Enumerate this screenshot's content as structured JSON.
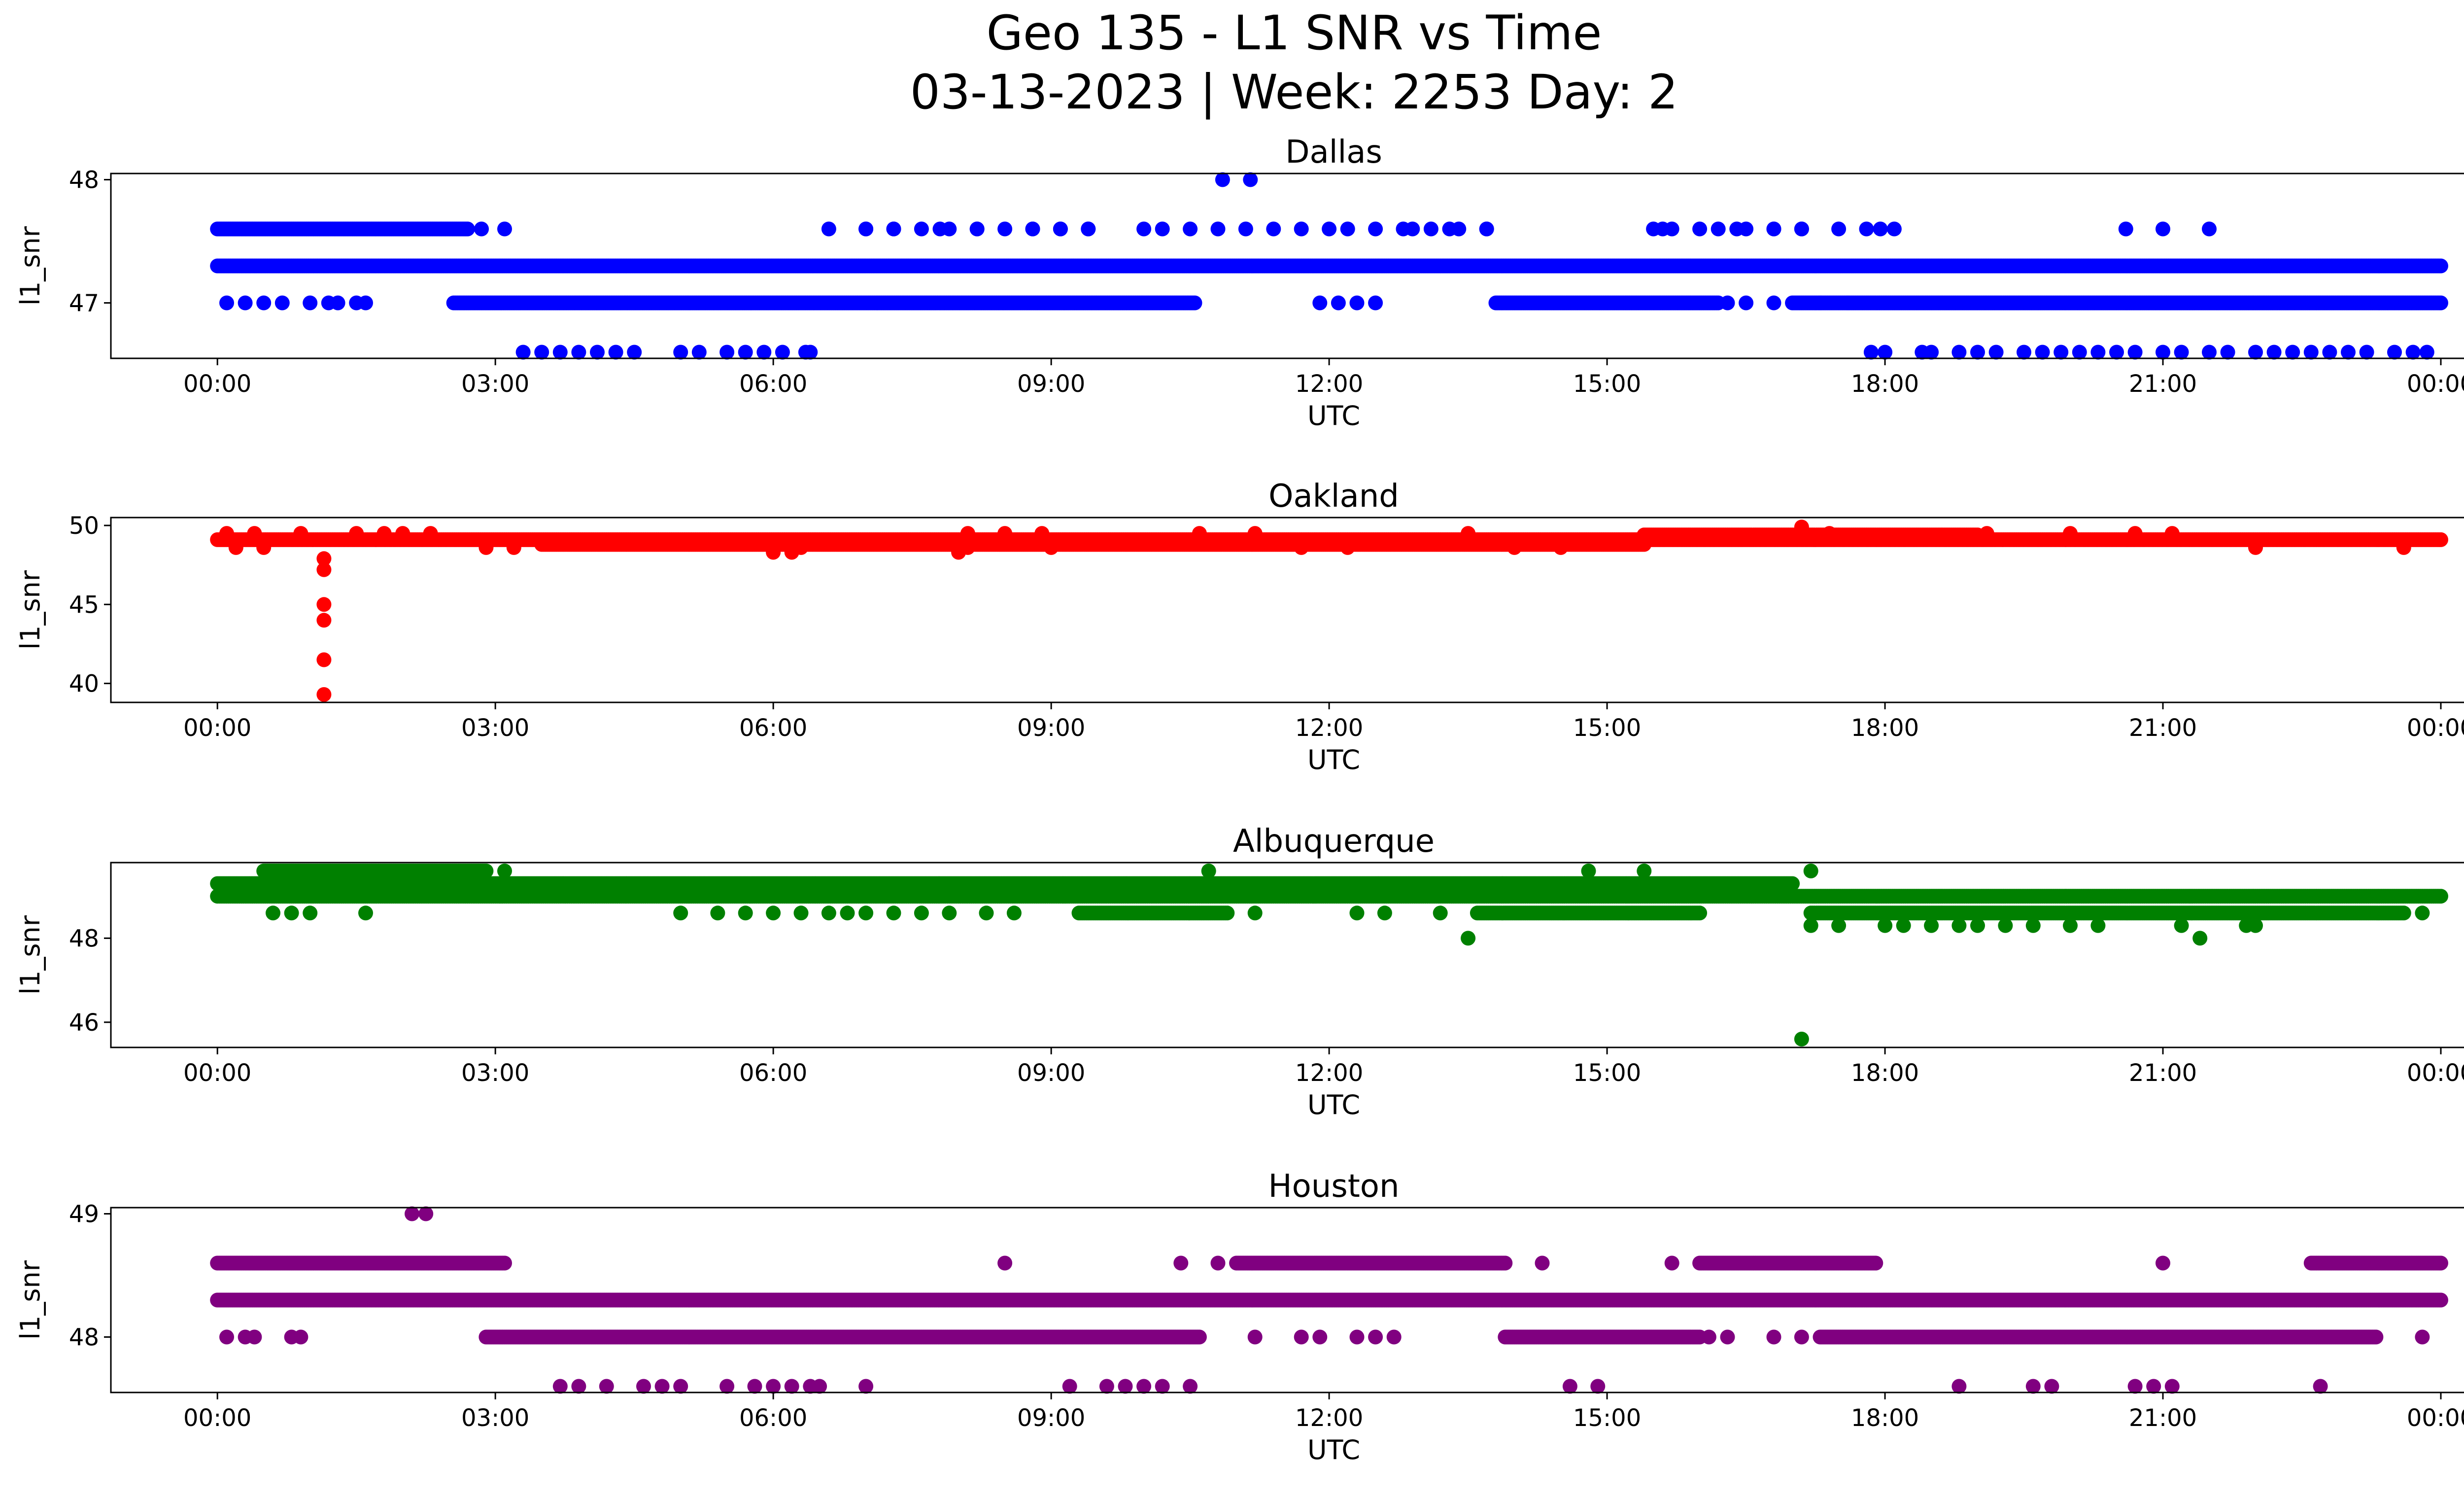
{
  "title_line1": "Geo 135 - L1 SNR vs Time",
  "title_line2": "03-13-2023 | Week: 2253 Day: 2",
  "chart_data": [
    {
      "type": "scatter",
      "title": "Dallas",
      "xlabel": "UTC",
      "ylabel": "l1_snr",
      "color": "#0000ff",
      "xticks": [
        "00:00",
        "03:00",
        "06:00",
        "09:00",
        "12:00",
        "15:00",
        "18:00",
        "21:00",
        "00:00"
      ],
      "xlim_hours": [
        -1.15,
        25.25
      ],
      "ylim": [
        46.55,
        48.05
      ],
      "yticks": [
        47,
        48
      ],
      "points": [
        {
          "hours": [
            0,
            24
          ],
          "y": 47.3,
          "continuous": true
        },
        {
          "hours": [
            0,
            2.7
          ],
          "y": 47.6,
          "continuous": true
        },
        {
          "hours": [
            2.85,
            3.1,
            6.6,
            7.0,
            7.3,
            7.8,
            8.2,
            8.8,
            9.1,
            9.4,
            10.0,
            12.0,
            12.2,
            12.5,
            12.8,
            13.3,
            13.7,
            15.5,
            15.7,
            16.0,
            16.4,
            16.8,
            17.1,
            17.5,
            17.8,
            17.95,
            18.1,
            20.6,
            21.0,
            21.5
          ],
          "y": 47.6
        },
        {
          "hours": [
            7.0,
            7.3,
            7.6,
            7.9,
            8.2,
            8.5,
            8.8,
            9.1,
            9.4,
            10.2,
            10.5,
            10.8,
            11.1,
            11.4,
            11.7,
            12.9,
            13.1,
            13.4,
            13.7,
            15.6,
            16.2,
            16.5,
            16.8,
            17.1
          ],
          "y": 47.6
        },
        {
          "hours": [
            10.85,
            11.15
          ],
          "y": 48.0
        },
        {
          "hours": [
            2.55,
            10.55
          ],
          "y": 47.0,
          "continuous": true
        },
        {
          "hours": [
            13.8,
            16.2
          ],
          "y": 47.0,
          "continuous": true
        },
        {
          "hours": [
            17.0,
            24
          ],
          "y": 47.0,
          "continuous": true
        },
        {
          "hours": [
            0.1,
            0.3,
            0.5,
            0.7,
            1.0,
            1.2,
            1.3,
            1.5,
            1.6,
            11.9,
            12.1,
            12.3,
            12.5,
            16.3,
            16.5,
            16.8,
            17.3,
            17.6
          ],
          "y": 47.0
        },
        {
          "hours": [
            3.3,
            3.5,
            3.7,
            3.9,
            4.1,
            4.3,
            4.5,
            5.0,
            5.2,
            5.5,
            5.7,
            5.9,
            6.1,
            6.4,
            6.35
          ],
          "y": 46.6
        },
        {
          "hours": [
            17.85,
            18.0,
            18.4,
            18.5,
            18.8,
            19.0,
            19.2,
            19.5,
            19.7,
            19.9,
            20.1,
            20.3,
            20.5,
            20.7,
            21.0,
            21.2,
            21.5,
            21.7,
            22.0,
            22.2,
            22.4,
            22.6,
            22.8,
            23.0,
            23.2,
            23.5,
            23.7,
            23.85
          ],
          "y": 46.6
        }
      ]
    },
    {
      "type": "scatter",
      "title": "Oakland",
      "xlabel": "UTC",
      "ylabel": "l1_snr",
      "color": "#ff0000",
      "xticks": [
        "00:00",
        "03:00",
        "06:00",
        "09:00",
        "12:00",
        "15:00",
        "18:00",
        "21:00",
        "00:00"
      ],
      "xlim_hours": [
        -1.15,
        25.25
      ],
      "ylim": [
        38.8,
        50.5
      ],
      "yticks": [
        40,
        45,
        50
      ],
      "points": [
        {
          "hours": [
            0,
            24
          ],
          "y": 49.1,
          "continuous": true
        },
        {
          "hours": [
            3.5,
            15.4
          ],
          "y": 48.8,
          "continuous": true
        },
        {
          "hours": [
            15.4,
            19.0
          ],
          "y": 49.4,
          "continuous": true
        },
        {
          "hours": [
            0.1,
            0.4,
            0.9,
            1.5,
            1.8,
            2.0,
            2.3,
            8.1,
            8.5,
            8.9,
            10.6,
            11.2,
            13.5,
            17.4,
            19.1,
            20.0,
            20.7,
            21.1
          ],
          "y": 49.5
        },
        {
          "hours": [
            0.2,
            0.5,
            2.9,
            3.2,
            6.0,
            6.3,
            8.1,
            9.0,
            11.7,
            12.2,
            14.0,
            14.5,
            22.0,
            23.6
          ],
          "y": 48.6
        },
        {
          "hours": [
            6.0,
            6.2,
            8.0
          ],
          "y": 48.3
        },
        {
          "hours": [
            17.1
          ],
          "y": 49.9
        },
        {
          "hours": [
            1.15,
            1.15,
            1.15,
            1.15,
            1.15,
            1.15
          ],
          "ys": [
            47.9,
            47.2,
            45.0,
            44.0,
            41.5,
            39.3
          ]
        }
      ]
    },
    {
      "type": "scatter",
      "title": "Albuquerque",
      "xlabel": "UTC",
      "ylabel": "l1_snr",
      "color": "#008000",
      "xticks": [
        "00:00",
        "03:00",
        "06:00",
        "09:00",
        "12:00",
        "15:00",
        "18:00",
        "21:00",
        "00:00"
      ],
      "xlim_hours": [
        -1.15,
        25.25
      ],
      "ylim": [
        45.4,
        49.8
      ],
      "yticks": [
        46,
        48
      ],
      "points": [
        {
          "hours": [
            0,
            24
          ],
          "y": 49.0,
          "continuous": true
        },
        {
          "hours": [
            0,
            17.0
          ],
          "y": 49.3,
          "continuous": true
        },
        {
          "hours": [
            0.5,
            2.9
          ],
          "y": 49.6,
          "continuous": true
        },
        {
          "hours": [
            9.3,
            10.9
          ],
          "y": 48.6,
          "continuous": true
        },
        {
          "hours": [
            13.6,
            16.0
          ],
          "y": 48.6,
          "continuous": true
        },
        {
          "hours": [
            17.2,
            23.6
          ],
          "y": 48.6,
          "continuous": true
        },
        {
          "hours": [
            5.0,
            5.4,
            5.7,
            6.0,
            6.3,
            6.6,
            6.8,
            7.0,
            7.3,
            7.6,
            7.9,
            8.3,
            8.6,
            11.2,
            12.3,
            12.6,
            13.2
          ],
          "y": 48.6
        },
        {
          "hours": [
            1.6,
            0.6,
            0.8,
            1.0,
            23.8
          ],
          "y": 48.6
        },
        {
          "hours": [
            17.2,
            17.5,
            18.0,
            18.2,
            18.5,
            18.8,
            19.0,
            19.3,
            19.6,
            20.0,
            20.3,
            21.2,
            21.9,
            22.0
          ],
          "y": 48.3
        },
        {
          "hours": [
            13.5,
            21.4
          ],
          "y": 48.0
        },
        {
          "hours": [
            3.1,
            10.7,
            14.8,
            15.4,
            17.2
          ],
          "y": 49.6
        },
        {
          "hours": [
            17.1
          ],
          "y": 45.6
        }
      ]
    },
    {
      "type": "scatter",
      "title": "Houston",
      "xlabel": "UTC",
      "ylabel": "l1_snr",
      "color": "#800080",
      "xticks": [
        "00:00",
        "03:00",
        "06:00",
        "09:00",
        "12:00",
        "15:00",
        "18:00",
        "21:00",
        "00:00"
      ],
      "xlim_hours": [
        -1.15,
        25.25
      ],
      "ylim": [
        47.55,
        49.05
      ],
      "yticks": [
        48,
        49
      ],
      "points": [
        {
          "hours": [
            0,
            24
          ],
          "y": 48.3,
          "continuous": true
        },
        {
          "hours": [
            0,
            3.1
          ],
          "y": 48.6,
          "continuous": true
        },
        {
          "hours": [
            11.0,
            13.9
          ],
          "y": 48.6,
          "continuous": true
        },
        {
          "hours": [
            16.0,
            17.9
          ],
          "y": 48.6,
          "continuous": true
        },
        {
          "hours": [
            22.6,
            24
          ],
          "y": 48.6,
          "continuous": true
        },
        {
          "hours": [
            8.5,
            10.4,
            10.8,
            14.3,
            15.7,
            21.0
          ],
          "y": 48.6
        },
        {
          "hours": [
            2.1,
            2.25
          ],
          "y": 49.0
        },
        {
          "hours": [
            2.9,
            10.6
          ],
          "y": 48.0,
          "continuous": true
        },
        {
          "hours": [
            13.9,
            16.0
          ],
          "y": 48.0,
          "continuous": true
        },
        {
          "hours": [
            17.3,
            23.3
          ],
          "y": 48.0,
          "continuous": true
        },
        {
          "hours": [
            0.1,
            0.3,
            0.4,
            0.8,
            0.9,
            11.2,
            11.7,
            11.9,
            12.3,
            12.5,
            12.7,
            16.1,
            16.3,
            16.8,
            17.1,
            23.8
          ],
          "y": 48.0
        },
        {
          "hours": [
            3.7,
            3.9,
            4.2,
            4.6,
            4.8,
            5.0,
            5.5,
            5.8,
            6.0,
            6.2,
            6.4,
            6.5,
            7.0,
            9.2,
            9.6,
            9.8,
            10.0,
            10.2,
            10.5,
            14.6,
            14.9,
            18.8,
            19.6,
            19.8,
            20.7,
            20.9,
            21.1,
            22.7
          ],
          "y": 47.6
        }
      ]
    }
  ]
}
